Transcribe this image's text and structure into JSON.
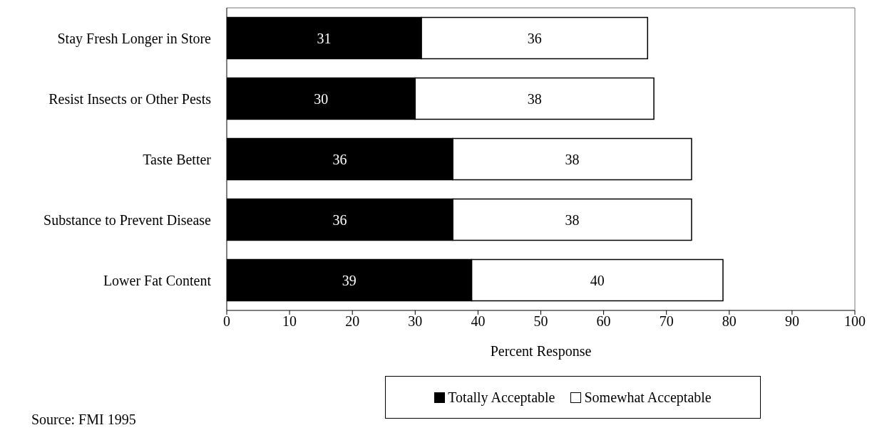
{
  "chart_data": {
    "type": "bar",
    "orientation": "horizontal",
    "stacked": true,
    "categories": [
      "Stay Fresh Longer in Store",
      "Resist Insects or Other Pests",
      "Taste Better",
      "Substance to Prevent Disease",
      "Lower Fat Content"
    ],
    "series": [
      {
        "name": "Totally Acceptable",
        "color": "#000000",
        "values": [
          31,
          30,
          36,
          36,
          39
        ]
      },
      {
        "name": "Somewhat Acceptable",
        "color": "#ffffff",
        "values": [
          36,
          38,
          38,
          38,
          40
        ]
      }
    ],
    "xlabel": "Percent Response",
    "xlim": [
      0,
      100
    ],
    "xticks": [
      0,
      10,
      20,
      30,
      40,
      50,
      60,
      70,
      80,
      90,
      100
    ],
    "data_labels": true,
    "legend": "bottom",
    "annotations": [
      "Source:  FMI 1995"
    ]
  }
}
